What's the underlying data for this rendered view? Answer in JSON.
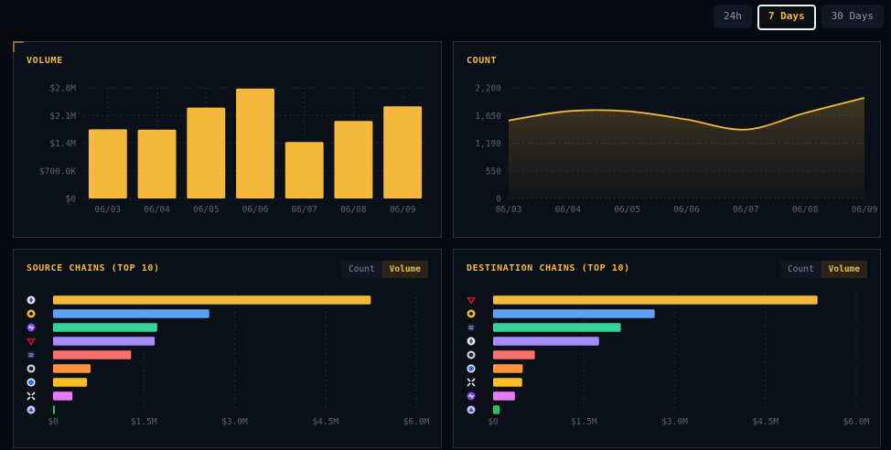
{
  "range_buttons": [
    {
      "label": "24h",
      "active": false
    },
    {
      "label": "7 Days",
      "active": true
    },
    {
      "label": "30 Days",
      "active": false
    }
  ],
  "colors": {
    "accent": "#f4b93a",
    "panel_bg": "#0b1018",
    "border": "#2a303a",
    "tick": "#59636f"
  },
  "volume_panel": {
    "title": "VOLUME"
  },
  "count_panel": {
    "title": "COUNT"
  },
  "source_panel": {
    "title": "SOURCE CHAINS (TOP 10)",
    "toggle": [
      "Count",
      "Volume"
    ],
    "active_toggle": "Volume"
  },
  "destination_panel": {
    "title": "DESTINATION CHAINS (TOP 10)",
    "toggle": [
      "Count",
      "Volume"
    ],
    "active_toggle": "Volume"
  },
  "chart_data": [
    {
      "type": "bar",
      "title": "VOLUME",
      "categories": [
        "06/03",
        "06/04",
        "06/05",
        "06/06",
        "06/07",
        "06/08",
        "06/09"
      ],
      "values": [
        1750000,
        1740000,
        2300000,
        2780000,
        1430000,
        1960000,
        2330000
      ],
      "yticks": [
        0,
        700000,
        1400000,
        2100000,
        2800000
      ],
      "ytick_labels": [
        "$0",
        "$700.0K",
        "$1.4M",
        "$2.1M",
        "$2.8M"
      ],
      "ylim": [
        0,
        2800000
      ],
      "color": "#f4b93a",
      "grid": true
    },
    {
      "type": "area",
      "title": "COUNT",
      "x": [
        "06/03",
        "06/04",
        "06/05",
        "06/06",
        "06/07",
        "06/08",
        "06/09"
      ],
      "values": [
        1550,
        1735,
        1735,
        1570,
        1370,
        1700,
        2000
      ],
      "yticks": [
        0,
        550,
        1100,
        1650,
        2200
      ],
      "ytick_labels": [
        "0",
        "550",
        "1,100",
        "1,650",
        "2,200"
      ],
      "ylim": [
        0,
        2200
      ],
      "color": "#f4b93a",
      "grid": true
    },
    {
      "type": "bar",
      "orientation": "horizontal",
      "title": "SOURCE CHAINS (TOP 10)",
      "icons": [
        "ethereum-icon",
        "bnb-icon",
        "polygon-icon",
        "arbitrum-icon",
        "starknet-icon",
        "scroll-icon",
        "base-icon",
        "zksync-icon",
        "linea-icon"
      ],
      "values": [
        5250000,
        2580000,
        1720000,
        1680000,
        1290000,
        620000,
        560000,
        320000,
        30000
      ],
      "colors": [
        "#f4b93a",
        "#5ea0f5",
        "#34d399",
        "#a78bfa",
        "#f87171",
        "#fb923c",
        "#fbbf24",
        "#e879f9",
        "#22c55e"
      ],
      "xticks": [
        0,
        1500000,
        3000000,
        4500000,
        6000000
      ],
      "xtick_labels": [
        "$0",
        "$1.5M",
        "$3.0M",
        "$4.5M",
        "$6.0M"
      ],
      "xlim": [
        0,
        6000000
      ]
    },
    {
      "type": "bar",
      "orientation": "horizontal",
      "title": "DESTINATION CHAINS (TOP 10)",
      "icons": [
        "arbitrum-icon",
        "bnb-icon",
        "starknet-icon",
        "ethereum-icon",
        "scroll-icon",
        "base-icon",
        "zksync-icon",
        "polygon-icon",
        "linea-icon"
      ],
      "values": [
        5360000,
        2670000,
        2110000,
        1750000,
        690000,
        490000,
        480000,
        360000,
        110000
      ],
      "colors": [
        "#f4b93a",
        "#5ea0f5",
        "#34d399",
        "#a78bfa",
        "#f87171",
        "#fb923c",
        "#fbbf24",
        "#e879f9",
        "#22c55e"
      ],
      "xticks": [
        0,
        1500000,
        3000000,
        4500000,
        6000000
      ],
      "xtick_labels": [
        "$0",
        "$1.5M",
        "$3.0M",
        "$4.5M",
        "$6.0M"
      ],
      "xlim": [
        0,
        6000000
      ]
    }
  ]
}
